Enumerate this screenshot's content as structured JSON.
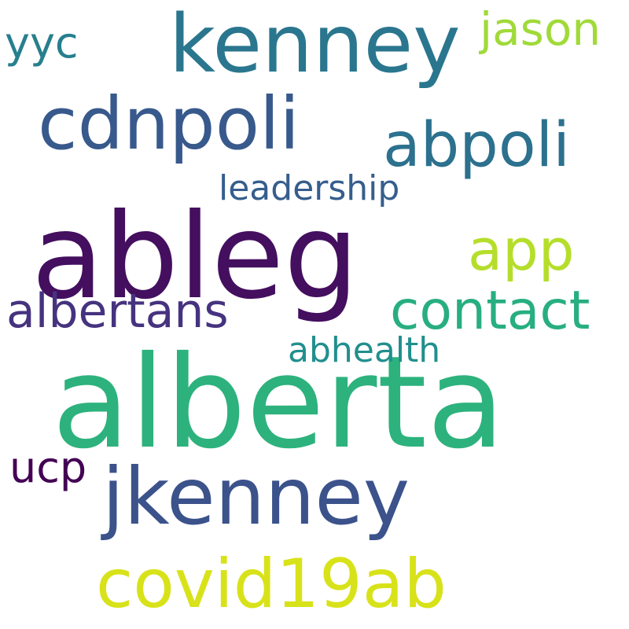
{
  "words": {
    "alberta": {
      "text": "alberta",
      "color": "#2db27d"
    },
    "ableg": {
      "text": "ableg",
      "color": "#440f5f"
    },
    "kenney": {
      "text": "kenney",
      "color": "#2a768e"
    },
    "jkenney": {
      "text": "jkenney",
      "color": "#3b528b"
    },
    "cdnpoli": {
      "text": "cdnpoli",
      "color": "#38598c"
    },
    "covid19ab": {
      "text": "covid19ab",
      "color": "#d8e219"
    },
    "abpoli": {
      "text": "abpoli",
      "color": "#2c718e"
    },
    "app": {
      "text": "app",
      "color": "#b5de2b"
    },
    "contact": {
      "text": "contact",
      "color": "#28ae80"
    },
    "albertans": {
      "text": "albertans",
      "color": "#46337f"
    },
    "jason": {
      "text": "jason",
      "color": "#a0da39"
    },
    "yyc": {
      "text": "yyc",
      "color": "#277f8e"
    },
    "ucp": {
      "text": "ucp",
      "color": "#440154"
    },
    "leadership": {
      "text": "leadership",
      "color": "#355e8d"
    },
    "abhealth": {
      "text": "abhealth",
      "color": "#218f8d"
    }
  }
}
